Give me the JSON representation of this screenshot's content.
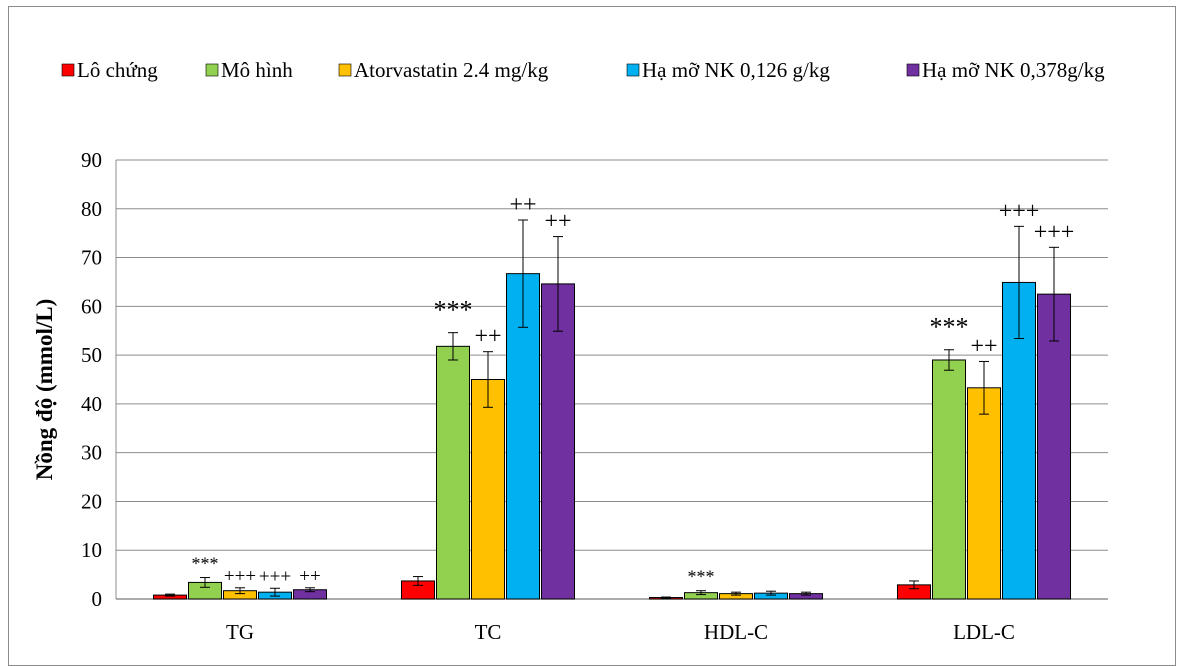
{
  "chart_data": {
    "type": "bar",
    "ylabel": "Nồng độ (mmol/L)",
    "ylim": [
      0,
      90
    ],
    "yticks": [
      0,
      10,
      20,
      30,
      40,
      50,
      60,
      70,
      80,
      90
    ],
    "grid": true,
    "legend_position": "top",
    "categories": [
      "TG",
      "TC",
      "HDL-C",
      "LDL-C"
    ],
    "series": [
      {
        "name": "Lô chứng",
        "color": "#ff0000",
        "values": [
          0.8,
          3.7,
          0.3,
          2.9
        ],
        "errors": [
          0.2,
          0.9,
          0.1,
          0.8
        ],
        "annotations": [
          "",
          "",
          "",
          ""
        ]
      },
      {
        "name": "Mô hình",
        "color": "#92d050",
        "values": [
          3.4,
          51.8,
          1.3,
          49.0
        ],
        "errors": [
          1.0,
          2.8,
          0.4,
          2.1
        ],
        "annotations": [
          "***",
          "***",
          "***",
          "***"
        ]
      },
      {
        "name": "Atorvastatin 2.4 mg/kg",
        "color": "#ffc000",
        "values": [
          1.7,
          45.0,
          1.1,
          43.3
        ],
        "errors": [
          0.6,
          5.7,
          0.3,
          5.4
        ],
        "annotations": [
          "+++",
          "++",
          "",
          "++"
        ]
      },
      {
        "name": "Hạ mỡ NK 0,126 g/kg",
        "color": "#00b0f0",
        "values": [
          1.4,
          66.7,
          1.2,
          64.9
        ],
        "errors": [
          0.8,
          11.0,
          0.4,
          11.5
        ],
        "annotations": [
          "+++",
          "++",
          "",
          "+++"
        ]
      },
      {
        "name": "Hạ mỡ NK 0,378g/kg",
        "color": "#7030a0",
        "values": [
          1.9,
          64.6,
          1.1,
          62.5
        ],
        "errors": [
          0.4,
          9.7,
          0.3,
          9.6
        ],
        "annotations": [
          "++",
          "++",
          "",
          "+++"
        ]
      }
    ]
  }
}
